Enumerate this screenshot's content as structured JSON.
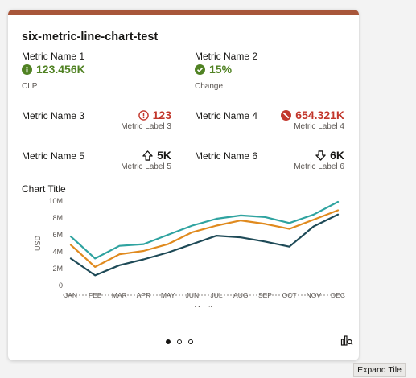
{
  "tile": {
    "title": "six-metric-line-chart-test",
    "metrics": [
      {
        "name": "Metric Name 1",
        "value": "123.456K",
        "label": "CLP",
        "icon": "info-icon",
        "color": "#508223"
      },
      {
        "name": "Metric Name 2",
        "value": "15%",
        "label": "Change",
        "icon": "check-circle-icon",
        "color": "#508223"
      },
      {
        "name": "Metric Name 3",
        "value": "123",
        "label": "Metric Label 3",
        "icon": "warning-circle-icon",
        "color": "#c2362b"
      },
      {
        "name": "Metric Name 4",
        "value": "654.321K",
        "label": "Metric Label 4",
        "icon": "blocked-icon",
        "color": "#c2362b"
      },
      {
        "name": "Metric Name 5",
        "value": "5K",
        "label": "Metric Label 5",
        "icon": "arrow-up-icon",
        "color": "#161513"
      },
      {
        "name": "Metric Name 6",
        "value": "6K",
        "label": "Metric Label 6",
        "icon": "arrow-down-icon",
        "color": "#161513"
      }
    ],
    "pager": {
      "count": 3,
      "active": 0
    },
    "view_button_icon": "chart-view-icon"
  },
  "tooltip": "Expand Tile",
  "chart_data": {
    "type": "line",
    "title": "Chart Title",
    "xlabel": "Month",
    "ylabel": "USD",
    "categories": [
      "JAN",
      "FEB",
      "MAR",
      "APR",
      "MAY",
      "JUN",
      "JUL",
      "AUG",
      "SEP",
      "OCT",
      "NOV",
      "DEC"
    ],
    "yticks": [
      "0",
      "2M",
      "4M",
      "6M",
      "8M",
      "10M"
    ],
    "ylim": [
      0,
      10000000
    ],
    "grid": false,
    "legend": "none",
    "series": [
      {
        "color": "#2fa3a0",
        "values": [
          5800000,
          3200000,
          4700000,
          4900000,
          6000000,
          7100000,
          7900000,
          8300000,
          8100000,
          7400000,
          8400000,
          9900000
        ]
      },
      {
        "color": "#e08a1e",
        "values": [
          4800000,
          2200000,
          3700000,
          4100000,
          4900000,
          6300000,
          7100000,
          7700000,
          7300000,
          6700000,
          7800000,
          8900000
        ]
      },
      {
        "color": "#1e4a57",
        "values": [
          3200000,
          1200000,
          2400000,
          3100000,
          3900000,
          4900000,
          5900000,
          5700000,
          5200000,
          4600000,
          7000000,
          8400000
        ]
      }
    ]
  }
}
